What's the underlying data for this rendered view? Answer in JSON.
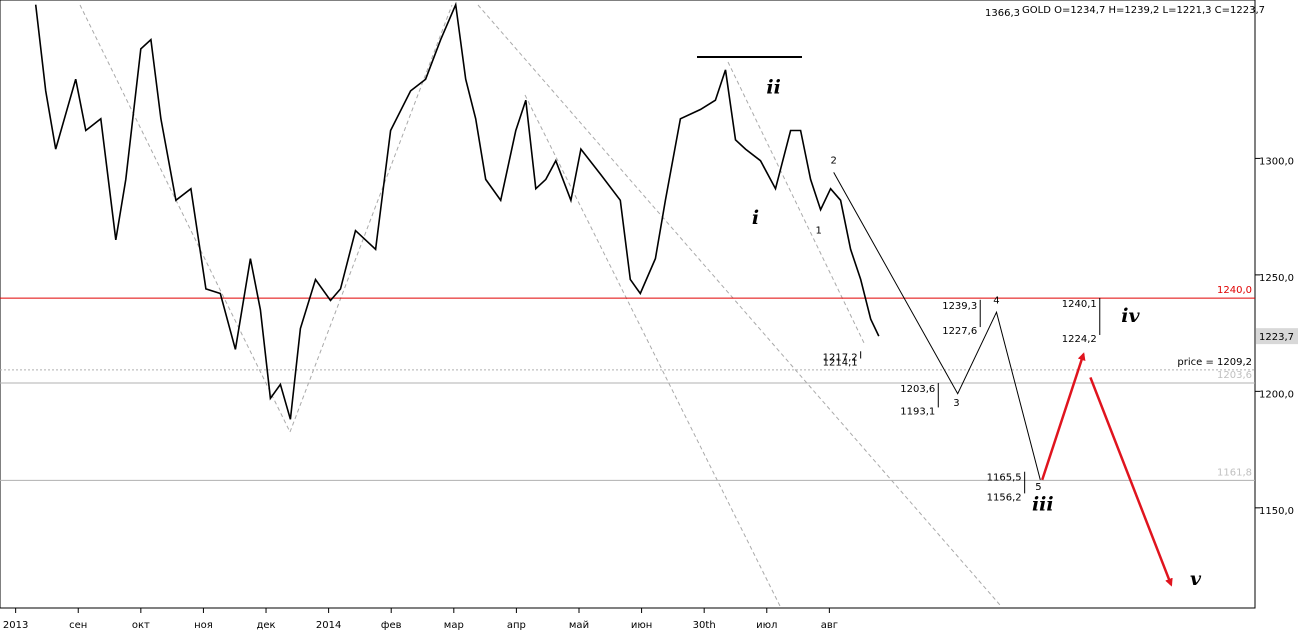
{
  "chart_data": {
    "type": "line",
    "title": "GOLD O=1234,7 H=1239,2 L=1221,3 C=1223,7",
    "high_label": "1366,3",
    "xlim": [
      -0.25,
      19.8
    ],
    "ylim": [
      1107,
      1368
    ],
    "xticks": [
      {
        "value": 0,
        "label": "2013"
      },
      {
        "value": 1,
        "label": "сен"
      },
      {
        "value": 2,
        "label": "окт"
      },
      {
        "value": 3,
        "label": "ноя"
      },
      {
        "value": 4,
        "label": "дек"
      },
      {
        "value": 5,
        "label": "2014"
      },
      {
        "value": 6,
        "label": "фев"
      },
      {
        "value": 7,
        "label": "мар"
      },
      {
        "value": 8,
        "label": "апр"
      },
      {
        "value": 9,
        "label": "май"
      },
      {
        "value": 10,
        "label": "июн"
      },
      {
        "value": 11,
        "label": "30th"
      },
      {
        "value": 12,
        "label": "июл"
      },
      {
        "value": 13,
        "label": "авг"
      }
    ],
    "yticks": [
      {
        "value": 1150,
        "label": "1150,0"
      },
      {
        "value": 1200,
        "label": "1200,0"
      },
      {
        "value": 1250,
        "label": "1250,0"
      },
      {
        "value": 1300,
        "label": "1300,0"
      }
    ],
    "series": [
      {
        "color": "#000000",
        "x": [
          0.32,
          0.48,
          0.64,
          0.96,
          1.12,
          1.36,
          1.6,
          1.76,
          2.0,
          2.16,
          2.32,
          2.56,
          2.8,
          3.04,
          3.27,
          3.51,
          3.75,
          3.91,
          4.07,
          4.23,
          4.39,
          4.55,
          4.79,
          5.03,
          5.19,
          5.43,
          5.75,
          5.99,
          6.31,
          6.55,
          6.79,
          7.03,
          7.19,
          7.35,
          7.51,
          7.75,
          7.99,
          8.15,
          8.31,
          8.47,
          8.63,
          8.87,
          9.03,
          9.35,
          9.66,
          9.82,
          9.98,
          10.22,
          10.38,
          10.62,
          10.94,
          11.18,
          11.34,
          11.5,
          11.66,
          11.9,
          12.14,
          12.38,
          12.54,
          12.7,
          12.86,
          13.02,
          13.18,
          13.34,
          13.5,
          13.66,
          13.79
        ],
        "values": [
          1366,
          1329,
          1304,
          1334,
          1312,
          1317,
          1265,
          1291,
          1347,
          1351,
          1317,
          1282,
          1287,
          1244,
          1242,
          1218,
          1257,
          1235,
          1197,
          1203,
          1188,
          1227,
          1248,
          1239,
          1244,
          1269,
          1261,
          1312,
          1329,
          1334,
          1351,
          1366,
          1334,
          1317,
          1291,
          1282,
          1312,
          1325,
          1287,
          1291,
          1299,
          1282,
          1304,
          1293,
          1282,
          1248,
          1242,
          1257,
          1282,
          1317,
          1321,
          1325,
          1338,
          1308,
          1304,
          1299,
          1287,
          1312,
          1312,
          1291,
          1278,
          1287,
          1282,
          1261,
          1248,
          1231,
          1223.7
        ]
      },
      {
        "color": "#000000",
        "x": [
          13.07,
          15.05,
          15.67,
          16.37
        ],
        "values": [
          1294,
          1199,
          1234,
          1162
        ]
      },
      {
        "color": "#e0141e",
        "x": [
          16.4,
          17.06,
          null,
          17.17,
          18.46
        ],
        "values": [
          1162,
          1216,
          null,
          1206,
          1117
        ]
      }
    ],
    "levels": [
      {
        "value": 1240,
        "label": "1240,0",
        "color": "#e00000"
      },
      {
        "value": 1209.2,
        "label": "price = 1209,2",
        "color": "#b0b0b0"
      },
      {
        "value": 1203.6,
        "label": "1203,6",
        "color": "#b0b0b0"
      },
      {
        "value": 1161.8,
        "label": "1161,8",
        "color": "#b0b0b0"
      }
    ],
    "last_price": {
      "value": 1223.7,
      "label": "1223,7"
    },
    "ranges": [
      {
        "x": 13.5,
        "high": {
          "value": 1217.2,
          "label": "1217,2"
        },
        "low": {
          "value": 1214.1,
          "label": "1214,1"
        }
      },
      {
        "x": 14.74,
        "high": {
          "value": 1203.6,
          "label": "1203,6"
        },
        "low": {
          "value": 1193.1,
          "label": "1193,1"
        }
      },
      {
        "x": 15.41,
        "high": {
          "value": 1239.3,
          "label": "1239,3"
        },
        "low": {
          "value": 1227.6,
          "label": "1227,6"
        }
      },
      {
        "x": 16.12,
        "high": {
          "value": 1165.5,
          "label": "1165,5"
        },
        "low": {
          "value": 1156.2,
          "label": "1156,2"
        }
      },
      {
        "x": 17.32,
        "high": {
          "value": 1240.1,
          "label": "1240,1"
        },
        "low": {
          "value": 1224.2,
          "label": "1224,2"
        }
      }
    ],
    "wave_labels": [
      {
        "label": "i",
        "x": 11.82,
        "y": 1274
      },
      {
        "label": "ii",
        "x": 12.11,
        "y": 1330
      },
      {
        "label": "iii",
        "x": 16.41,
        "y": 1151
      },
      {
        "label": "iv",
        "x": 17.81,
        "y": 1232
      },
      {
        "label": "v",
        "x": 18.85,
        "y": 1119
      }
    ],
    "point_labels": [
      {
        "label": "1",
        "x": 12.83,
        "y": 1269
      },
      {
        "label": "2",
        "x": 13.07,
        "y": 1299
      },
      {
        "label": "3",
        "x": 15.03,
        "y": 1195
      },
      {
        "label": "4",
        "x": 15.67,
        "y": 1239
      },
      {
        "label": "5",
        "x": 16.34,
        "y": 1159
      }
    ]
  }
}
